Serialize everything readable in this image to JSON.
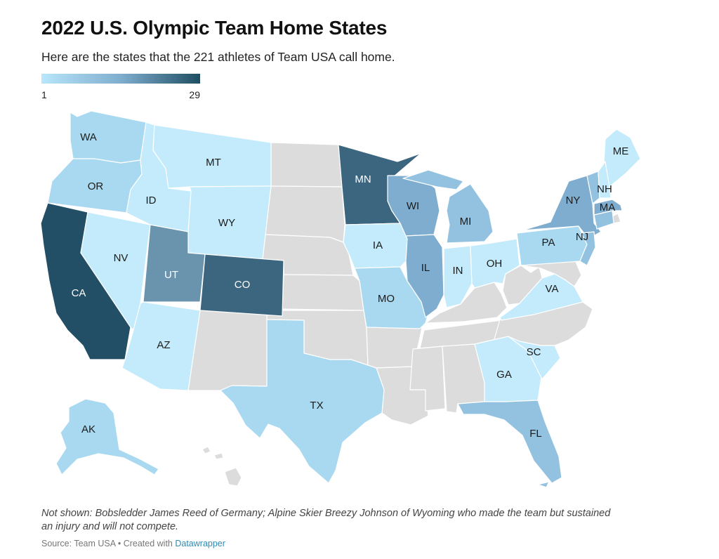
{
  "title": "2022 U.S. Olympic Team Home States",
  "subtitle": "Here are the states that the 221 athletes of Team USA call home.",
  "legend": {
    "min_label": "1",
    "max_label": "29",
    "color_low": "#b8e6fa",
    "color_high": "#1f4e63"
  },
  "colors": {
    "no_data": "#dcdcdc",
    "l1": "#c3ebfb",
    "l2": "#a9d9f0",
    "l3": "#93c2e0",
    "l4": "#7fadcf",
    "l5": "#6a93ae",
    "l6": "#3c6680",
    "l7": "#224e66"
  },
  "states": [
    {
      "code": "WA",
      "label": "WA"
    },
    {
      "code": "OR",
      "label": "OR"
    },
    {
      "code": "CA",
      "label": "CA"
    },
    {
      "code": "NV",
      "label": "NV"
    },
    {
      "code": "ID",
      "label": "ID"
    },
    {
      "code": "MT",
      "label": "MT"
    },
    {
      "code": "WY",
      "label": "WY"
    },
    {
      "code": "UT",
      "label": "UT"
    },
    {
      "code": "CO",
      "label": "CO"
    },
    {
      "code": "AZ",
      "label": "AZ"
    },
    {
      "code": "TX",
      "label": "TX"
    },
    {
      "code": "MN",
      "label": "MN"
    },
    {
      "code": "IA",
      "label": "IA"
    },
    {
      "code": "MO",
      "label": "MO"
    },
    {
      "code": "WI",
      "label": "WI"
    },
    {
      "code": "IL",
      "label": "IL"
    },
    {
      "code": "MI",
      "label": "MI"
    },
    {
      "code": "IN",
      "label": "IN"
    },
    {
      "code": "OH",
      "label": "OH"
    },
    {
      "code": "PA",
      "label": "PA"
    },
    {
      "code": "NY",
      "label": "NY"
    },
    {
      "code": "NJ",
      "label": "NJ"
    },
    {
      "code": "VA",
      "label": "VA"
    },
    {
      "code": "GA",
      "label": "GA"
    },
    {
      "code": "SC",
      "label": "SC"
    },
    {
      "code": "FL",
      "label": "FL"
    },
    {
      "code": "ME",
      "label": "ME"
    },
    {
      "code": "NH",
      "label": "NH"
    },
    {
      "code": "MA",
      "label": "MA"
    },
    {
      "code": "AK",
      "label": "AK"
    }
  ],
  "note": "Not shown: Bobsledder James Reed of Germany; Alpine Skier Breezy Johnson of Wyoming who made the team but sustained an injury and will not compete.",
  "source": {
    "prefix": "Source: Team USA • Created with ",
    "link": "Datawrapper"
  }
}
